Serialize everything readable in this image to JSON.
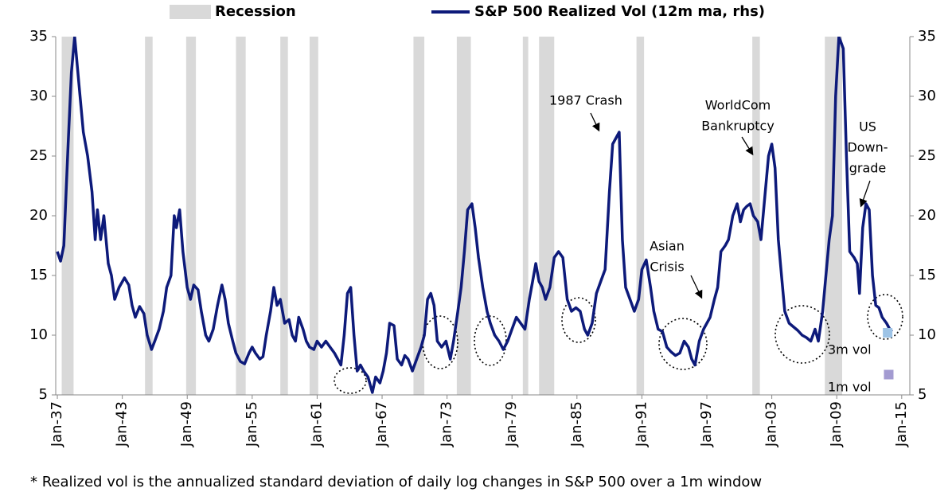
{
  "chart_data": {
    "type": "line",
    "legend": [
      "Recession"
    ],
    "recession_color": "#d9d9d9",
    "recessions": [
      [
        1937.4,
        1938.5
      ],
      [
        1945.1,
        1945.8
      ],
      [
        1948.9,
        1949.8
      ],
      [
        1953.5,
        1954.4
      ],
      [
        1957.6,
        1958.3
      ],
      [
        1960.3,
        1961.1
      ],
      [
        1969.9,
        1970.9
      ],
      [
        1973.9,
        1975.2
      ],
      [
        1980.0,
        1980.5
      ],
      [
        1981.5,
        1982.9
      ],
      [
        1990.5,
        1991.2
      ],
      [
        2001.2,
        2001.9
      ],
      [
        2007.9,
        2009.5
      ]
    ],
    "series": [
      {
        "name": "S&P 500 Realized Vol (12m ma, rhs)",
        "color": "#0d1a7a",
        "axis": "y2",
        "x": [
          1937.0,
          1937.3,
          1937.6,
          1938.0,
          1938.3,
          1938.6,
          1939.0,
          1939.4,
          1939.8,
          1940.2,
          1940.5,
          1940.7,
          1941.0,
          1941.3,
          1941.7,
          1942.0,
          1942.3,
          1942.7,
          1943.2,
          1943.6,
          1943.9,
          1944.2,
          1944.6,
          1945.0,
          1945.3,
          1945.7,
          1946.0,
          1946.4,
          1946.8,
          1947.1,
          1947.5,
          1947.8,
          1948.0,
          1948.3,
          1948.6,
          1949.0,
          1949.3,
          1949.6,
          1950.0,
          1950.3,
          1950.7,
          1951.0,
          1951.4,
          1951.8,
          1952.2,
          1952.5,
          1952.8,
          1953.2,
          1953.5,
          1953.9,
          1954.3,
          1954.7,
          1955.0,
          1955.3,
          1955.7,
          1956.0,
          1956.3,
          1956.7,
          1957.0,
          1957.3,
          1957.6,
          1958.0,
          1958.4,
          1958.7,
          1959.0,
          1959.3,
          1959.7,
          1960.0,
          1960.3,
          1960.7,
          1961.0,
          1961.4,
          1961.8,
          1962.2,
          1962.6,
          1962.9,
          1963.2,
          1963.5,
          1963.8,
          1964.1,
          1964.4,
          1964.7,
          1965.0,
          1965.3,
          1965.7,
          1966.1,
          1966.4,
          1966.8,
          1967.1,
          1967.4,
          1967.7,
          1968.1,
          1968.4,
          1968.8,
          1969.1,
          1969.4,
          1969.8,
          1970.2,
          1970.6,
          1970.9,
          1971.2,
          1971.5,
          1971.8,
          1972.1,
          1972.5,
          1972.9,
          1973.3,
          1973.6,
          1974.0,
          1974.3,
          1974.6,
          1974.9,
          1975.3,
          1975.6,
          1975.9,
          1976.3,
          1976.7,
          1977.0,
          1977.4,
          1977.8,
          1978.2,
          1978.6,
          1979.0,
          1979.4,
          1979.8,
          1980.2,
          1980.6,
          1980.9,
          1981.2,
          1981.5,
          1981.8,
          1982.1,
          1982.5,
          1982.9,
          1983.3,
          1983.7,
          1984.1,
          1984.5,
          1984.9,
          1985.3,
          1985.7,
          1986.0,
          1986.4,
          1986.8,
          1987.2,
          1987.6,
          1988.0,
          1988.3,
          1988.6,
          1988.9,
          1989.2,
          1989.5,
          1989.9,
          1990.3,
          1990.7,
          1991.0,
          1991.4,
          1991.8,
          1992.1,
          1992.5,
          1992.9,
          1993.3,
          1993.7,
          1994.1,
          1994.5,
          1994.9,
          1995.3,
          1995.6,
          1995.9,
          1996.3,
          1996.7,
          1997.0,
          1997.3,
          1997.7,
          1998.0,
          1998.3,
          1998.7,
          1999.0,
          1999.4,
          1999.8,
          2000.1,
          2000.4,
          2000.7,
          2001.0,
          2001.3,
          2001.7,
          2002.0,
          2002.4,
          2002.7,
          2003.0,
          2003.3,
          2003.6,
          2003.9,
          2004.2,
          2004.6,
          2005.0,
          2005.4,
          2005.8,
          2006.2,
          2006.6,
          2007.0,
          2007.3,
          2007.7,
          2008.0,
          2008.3,
          2008.6,
          2008.9,
          2009.2,
          2009.6,
          2009.9,
          2010.2,
          2010.6,
          2010.9,
          2011.1,
          2011.4,
          2011.7,
          2012.0,
          2012.3,
          2012.6,
          2012.9,
          2013.2,
          2013.6,
          2013.9,
          2014.1
        ],
        "values": [
          17,
          16.2,
          17.5,
          26,
          32,
          35,
          31,
          27,
          25,
          22,
          18,
          20.5,
          18,
          20,
          16,
          15,
          13,
          14,
          14.8,
          14.2,
          12.5,
          11.5,
          12.4,
          11.8,
          10,
          8.8,
          9.5,
          10.5,
          12,
          14,
          15,
          20,
          19,
          20.5,
          17,
          14,
          13,
          14.2,
          13.8,
          12,
          10,
          9.5,
          10.5,
          12.5,
          14.2,
          13,
          11,
          9.5,
          8.5,
          7.8,
          7.6,
          8.5,
          9,
          8.5,
          8,
          8.2,
          10,
          12,
          14,
          12.5,
          13,
          11,
          11.3,
          10,
          9.5,
          11.5,
          10.5,
          9.5,
          9,
          8.8,
          9.5,
          9,
          9.5,
          9,
          8.5,
          8,
          7.5,
          10,
          13.5,
          14,
          10,
          7,
          7.5,
          7,
          6.5,
          5.2,
          6.5,
          6,
          7,
          8.5,
          11,
          10.8,
          8,
          7.5,
          8.3,
          8,
          7,
          8,
          9,
          10,
          13,
          13.5,
          12.5,
          9.5,
          9,
          9.5,
          8,
          9.5,
          12,
          14,
          17,
          20.5,
          21,
          19,
          16.5,
          14,
          12,
          11,
          10,
          9.5,
          8.8,
          9.5,
          10.5,
          11.5,
          11,
          10.5,
          13,
          14.5,
          16,
          14.5,
          14,
          13,
          14,
          16.5,
          17,
          16.5,
          13,
          12,
          12.3,
          12,
          10.5,
          10,
          11,
          13.5,
          14.5,
          15.5,
          22,
          26,
          26.5,
          27,
          18,
          14,
          13,
          12,
          13,
          15.5,
          16.3,
          14,
          12,
          10.5,
          10.3,
          9,
          8.6,
          8.3,
          8.5,
          9.5,
          9,
          8,
          7.5,
          9.5,
          10.5,
          11,
          11.5,
          13,
          14,
          17,
          17.5,
          18,
          20,
          21,
          19.5,
          20.5,
          20.8,
          21,
          20,
          19.5,
          18,
          22,
          25,
          26,
          24,
          18,
          15,
          12,
          11,
          10.7,
          10.4,
          10,
          9.8,
          9.5,
          10.5,
          9.5,
          12,
          15,
          18,
          20,
          30,
          35,
          34,
          25,
          17,
          16.5,
          16,
          13.5,
          19,
          21,
          20.5,
          15,
          12.5,
          12.3,
          11.5,
          11,
          10.5,
          10.3
        ]
      }
    ],
    "points": [
      {
        "name": "3m vol",
        "x": 2013.7,
        "value": 10.2,
        "color": "#9dc3e6"
      },
      {
        "name": "1m vol",
        "x": 2013.8,
        "value": 6.7,
        "color": "#a39bd1"
      }
    ],
    "annotations": [
      {
        "lines": [
          "1987 Crash"
        ]
      },
      {
        "lines": [
          "WorldCom",
          "Bankruptcy"
        ]
      },
      {
        "lines": [
          "US",
          "Down-",
          "grade"
        ]
      },
      {
        "lines": [
          "Asian",
          "Crisis"
        ]
      }
    ],
    "xlim": [
      1936.85,
      2015.75
    ],
    "xticks": [
      {
        "value": 1937,
        "label": "Jan-37"
      },
      {
        "value": 1943,
        "label": "Jan-43"
      },
      {
        "value": 1949,
        "label": "Jan-49"
      },
      {
        "value": 1955,
        "label": "Jan-55"
      },
      {
        "value": 1961,
        "label": "Jan-61"
      },
      {
        "value": 1967,
        "label": "Jan-67"
      },
      {
        "value": 1973,
        "label": "Jan-73"
      },
      {
        "value": 1979,
        "label": "Jan-79"
      },
      {
        "value": 1985,
        "label": "Jan-85"
      },
      {
        "value": 1991,
        "label": "Jan-91"
      },
      {
        "value": 1997,
        "label": "Jan-97"
      },
      {
        "value": 2003,
        "label": "Jan-03"
      },
      {
        "value": 2009,
        "label": "Jan-09"
      },
      {
        "value": 2015,
        "label": "Jan-15"
      }
    ],
    "ylim": [
      5,
      35
    ],
    "yticks": [
      5,
      10,
      15,
      20,
      25,
      30,
      35
    ],
    "y2lim": [
      5,
      35
    ],
    "y2ticks": [
      5,
      10,
      15,
      20,
      25,
      30,
      35
    ],
    "footnote": "* Realized vol is the annualized standard deviation of daily log changes in S&P 500 over a 1m window"
  }
}
